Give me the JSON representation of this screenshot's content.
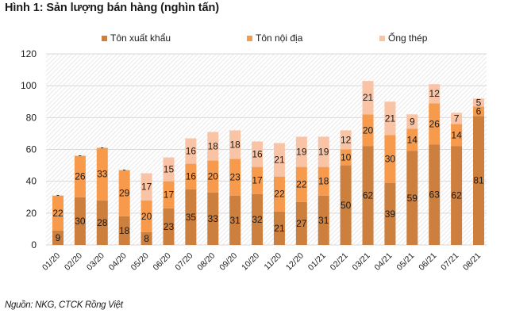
{
  "title": "Hình 1: Sản lượng bán hàng (nghìn tấn)",
  "source": "Nguồn: NKG, CTCK Rồng Việt",
  "chart_data": {
    "type": "bar",
    "stacked": true,
    "title": "Hình 1: Sản lượng bán hàng (nghìn tấn)",
    "xlabel": "",
    "ylabel": "",
    "ylim": [
      0,
      120
    ],
    "yticks": [
      0,
      20,
      40,
      60,
      80,
      100,
      120
    ],
    "grid": true,
    "legend_position": "top",
    "categories": [
      "01/20",
      "02/20",
      "03/20",
      "04/20",
      "05/20",
      "06/20",
      "07/20",
      "08/20",
      "09/20",
      "10/20",
      "11/20",
      "12/20",
      "01/21",
      "02/21",
      "03/21",
      "04/21",
      "05/21",
      "06/21",
      "07/21",
      "08/21"
    ],
    "series": [
      {
        "name": "Tôn xuất khẩu",
        "color": "#cd7f3e",
        "values": [
          9,
          30,
          28,
          18,
          8,
          23,
          35,
          33,
          31,
          32,
          21,
          27,
          31,
          50,
          62,
          39,
          59,
          63,
          62,
          81
        ]
      },
      {
        "name": "Tôn nội địa",
        "color": "#f79a4c",
        "values": [
          22,
          26,
          33,
          29,
          20,
          17,
          16,
          20,
          23,
          17,
          22,
          22,
          18,
          10,
          20,
          30,
          14,
          26,
          14,
          6
        ]
      },
      {
        "name": "Ống thép",
        "color": "#f9c4a6",
        "values": [
          0,
          0,
          0,
          0,
          17,
          15,
          16,
          18,
          18,
          16,
          21,
          19,
          19,
          12,
          21,
          21,
          9,
          12,
          7,
          5
        ]
      }
    ],
    "zero_label": "-"
  }
}
